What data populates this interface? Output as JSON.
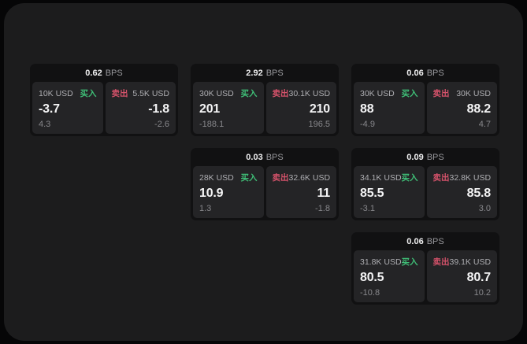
{
  "labels": {
    "bps_unit": "BPS",
    "buy": "买入",
    "sell": "卖出"
  },
  "colors": {
    "outer_bg": "#060607",
    "panel_bg": "#1c1c1d",
    "card_bg": "#111112",
    "tile_bg": "#242426",
    "buy_green": "#3fbf77",
    "sell_red": "#d4526a",
    "value_text": "#f4f4f5",
    "amount_text": "#aeaeb2",
    "sub_text": "#87878b"
  },
  "cards": [
    {
      "bps": "0.62",
      "buy": {
        "amount": "10K USD",
        "value": "-3.7",
        "sub": "4.3"
      },
      "sell": {
        "amount": "5.5K USD",
        "value": "-1.8",
        "sub": "-2.6"
      }
    },
    {
      "bps": "2.92",
      "buy": {
        "amount": "30K USD",
        "value": "201",
        "sub": "-188.1"
      },
      "sell": {
        "amount": "30.1K USD",
        "value": "210",
        "sub": "196.5"
      }
    },
    {
      "bps": "0.06",
      "buy": {
        "amount": "30K USD",
        "value": "88",
        "sub": "-4.9"
      },
      "sell": {
        "amount": "30K USD",
        "value": "88.2",
        "sub": "4.7"
      }
    },
    {
      "bps": "0.03",
      "buy": {
        "amount": "28K USD",
        "value": "10.9",
        "sub": "1.3"
      },
      "sell": {
        "amount": "32.6K USD",
        "value": "11",
        "sub": "-1.8"
      }
    },
    {
      "bps": "0.09",
      "buy": {
        "amount": "34.1K USD",
        "value": "85.5",
        "sub": "-3.1"
      },
      "sell": {
        "amount": "32.8K USD",
        "value": "85.8",
        "sub": "3.0"
      }
    },
    {
      "bps": "0.06",
      "buy": {
        "amount": "31.8K USD",
        "value": "80.5",
        "sub": "-10.8"
      },
      "sell": {
        "amount": "39.1K USD",
        "value": "80.7",
        "sub": "10.2"
      }
    }
  ]
}
